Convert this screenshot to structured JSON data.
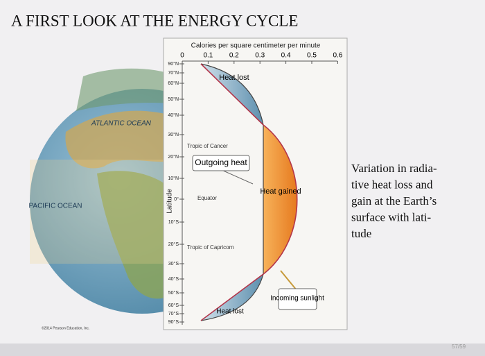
{
  "header": {
    "title": "A FIRST LOOK AT THE ENERGY CYCLE"
  },
  "diagram": {
    "axis_title": "Calories per square centimeter per minute",
    "x_ticks": [
      "0",
      "0.1",
      "0.2",
      "0.3",
      "0.4",
      "0.5",
      "0.6"
    ],
    "y_axis_title": "Latitude",
    "latitudes": [
      "90°N",
      "70°N",
      "60°N",
      "50°N",
      "40°N",
      "30°N",
      "20°N",
      "10°N",
      "0°",
      "10°S",
      "20°S",
      "30°S",
      "40°S",
      "50°S",
      "60°S",
      "70°S",
      "90°S"
    ],
    "annotations": {
      "heat_lost_top": "Heat lost",
      "heat_gained": "Heat gained",
      "outgoing_heat": "Outgoing heat",
      "incoming_sunlight": "Incoming sunlight",
      "tropic_cancer": "Tropic of Cancer",
      "equator": "Equator",
      "tropic_capricorn": "Tropic of Capricorn",
      "heat_lost_bottom": "Heat lost"
    },
    "globe_labels": {
      "atlantic": "ATLANTIC OCEAN",
      "pacific": "PACIFIC OCEAN"
    }
  },
  "caption": {
    "lines": [
      "Variation in radia-",
      "tive heat loss and",
      "gain at the Earth’s",
      "surface with lati-",
      "tude"
    ]
  },
  "footer": {
    "copyright": "©2014 Pearson Education, Inc.",
    "page": "57/59"
  }
}
